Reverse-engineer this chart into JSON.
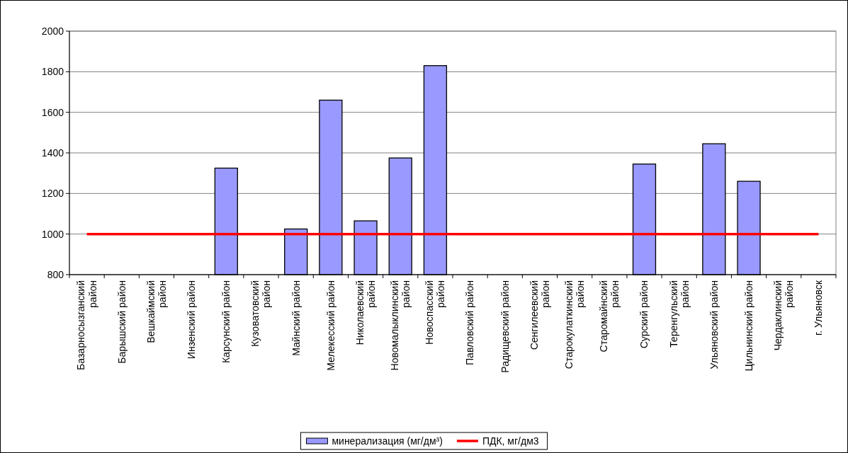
{
  "chart_data": {
    "type": "bar",
    "categories": [
      "Базарносызганский район",
      "Барышский район",
      "Вешкаймский район",
      "Инзенский район",
      "Карсунский район",
      "Кузоватовский район",
      "Майнский район",
      "Мелекесский район",
      "Николаевский район",
      "Новомалыклинский район",
      "Новоспасский район",
      "Павловский район",
      "Радищевский район",
      "Сенгилеевский район",
      "Старокулаткинский район",
      "Старомайнский район",
      "Сурский район",
      "Теренгульский район",
      "Ульяновский район",
      "Цильнинский район",
      "Чердаклинский район",
      "г. Ульяновск"
    ],
    "series": [
      {
        "name": "минерализация (мг/дм³)",
        "color": "#9999ff",
        "values": [
          null,
          null,
          null,
          null,
          1325,
          null,
          1025,
          1660,
          1065,
          1375,
          1830,
          null,
          null,
          null,
          null,
          null,
          1345,
          null,
          1445,
          1260,
          null,
          null
        ]
      },
      {
        "name": "ПДК, мг/дм3",
        "type": "line",
        "color": "#ff0000",
        "values": [
          1000,
          1000,
          1000,
          1000,
          1000,
          1000,
          1000,
          1000,
          1000,
          1000,
          1000,
          1000,
          1000,
          1000,
          1000,
          1000,
          1000,
          1000,
          1000,
          1000,
          1000,
          1000
        ]
      }
    ],
    "ylim": [
      800,
      2000
    ],
    "yticks": [
      800,
      1000,
      1200,
      1400,
      1600,
      1800,
      2000
    ],
    "grid": "y",
    "legend": "bottom"
  }
}
